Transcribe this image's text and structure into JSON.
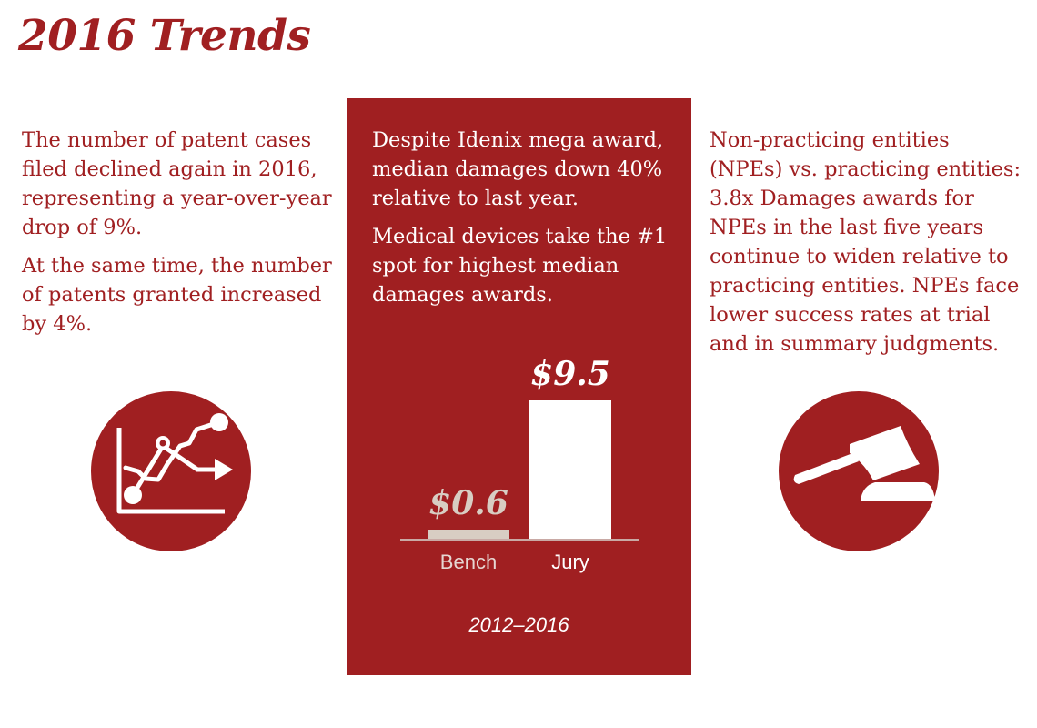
{
  "title": "2016 Trends",
  "left": {
    "paragraphs": [
      "The number of patent cases filed declined again in 2016, representing a year-over-year drop of 9%.",
      "At the same time, the number of patents granted increased by 4%."
    ],
    "icon": "trend-chart-icon"
  },
  "center": {
    "paragraphs": [
      "Despite Idenix mega award, median damages down 40% relative to last year.",
      "Medical devices take the #1 spot for highest median damages awards."
    ],
    "period": "2012–2016"
  },
  "right": {
    "paragraphs": [
      "Non-practicing entities (NPEs) vs. practicing entities: 3.8x Damages awards for NPEs in the last five years continue to widen relative to practicing entities. NPEs face lower success rates at trial and in summary judgments."
    ],
    "icon": "gavel-icon"
  },
  "colors": {
    "brand": "#a01f21",
    "bench_bar": "#d8cdc3",
    "jury_bar": "#ffffff"
  },
  "chart_data": {
    "type": "bar",
    "categories": [
      "Bench",
      "Jury"
    ],
    "values": [
      0.6,
      9.5
    ],
    "value_labels": [
      "$0.6",
      "$9.5"
    ],
    "title": "",
    "xlabel": "2012–2016",
    "ylabel": "",
    "ylim": [
      0,
      9.5
    ]
  }
}
